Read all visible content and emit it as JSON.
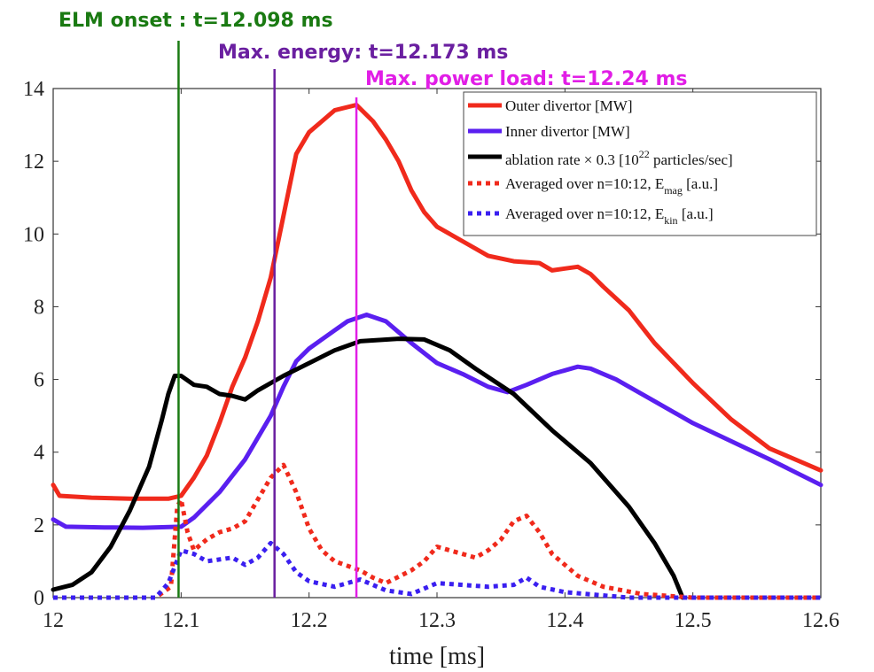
{
  "chart_data": {
    "type": "line",
    "xlabel": "time [ms]",
    "ylabel": "",
    "xlim": [
      12.0,
      12.6
    ],
    "ylim": [
      0,
      14
    ],
    "xticks": [
      "12",
      "12.1",
      "12.2",
      "12.3",
      "12.4",
      "12.5",
      "12.6"
    ],
    "xtick_values": [
      12.0,
      12.1,
      12.2,
      12.3,
      12.4,
      12.5,
      12.6
    ],
    "yticks": [
      "0",
      "2",
      "4",
      "6",
      "8",
      "10",
      "12",
      "14"
    ],
    "ytick_values": [
      0,
      2,
      4,
      6,
      8,
      10,
      12,
      14
    ],
    "legend_position": "top-right",
    "vertical_markers": [
      {
        "x": 12.098,
        "label": "ELM onset : t=12.098 ms",
        "color": "#1a7a12"
      },
      {
        "x": 12.173,
        "label": "Max. energy: t=12.173 ms",
        "color": "#6a1fa0"
      },
      {
        "x": 12.237,
        "label": "Max. power load: t=12.24 ms",
        "color": "#e11ee6"
      }
    ],
    "series": [
      {
        "name": "Outer divertor [MW]",
        "color": "#f02a1c",
        "style": "solid",
        "points": [
          [
            12.0,
            3.1
          ],
          [
            12.005,
            2.8
          ],
          [
            12.03,
            2.75
          ],
          [
            12.06,
            2.72
          ],
          [
            12.09,
            2.72
          ],
          [
            12.1,
            2.8
          ],
          [
            12.11,
            3.3
          ],
          [
            12.12,
            3.9
          ],
          [
            12.13,
            4.8
          ],
          [
            12.14,
            5.8
          ],
          [
            12.15,
            6.6
          ],
          [
            12.16,
            7.6
          ],
          [
            12.17,
            8.8
          ],
          [
            12.18,
            10.5
          ],
          [
            12.19,
            12.2
          ],
          [
            12.2,
            12.8
          ],
          [
            12.21,
            13.1
          ],
          [
            12.22,
            13.4
          ],
          [
            12.237,
            13.55
          ],
          [
            12.25,
            13.1
          ],
          [
            12.26,
            12.6
          ],
          [
            12.27,
            12.0
          ],
          [
            12.28,
            11.2
          ],
          [
            12.29,
            10.6
          ],
          [
            12.3,
            10.2
          ],
          [
            12.32,
            9.8
          ],
          [
            12.34,
            9.4
          ],
          [
            12.36,
            9.25
          ],
          [
            12.38,
            9.2
          ],
          [
            12.39,
            9.0
          ],
          [
            12.4,
            9.05
          ],
          [
            12.41,
            9.1
          ],
          [
            12.42,
            8.9
          ],
          [
            12.43,
            8.55
          ],
          [
            12.45,
            7.9
          ],
          [
            12.47,
            7.0
          ],
          [
            12.5,
            5.9
          ],
          [
            12.53,
            4.9
          ],
          [
            12.56,
            4.1
          ],
          [
            12.6,
            3.5
          ]
        ]
      },
      {
        "name": "Inner divertor [MW]",
        "color": "#5a1ff0",
        "style": "solid",
        "points": [
          [
            12.0,
            2.15
          ],
          [
            12.01,
            1.95
          ],
          [
            12.04,
            1.93
          ],
          [
            12.07,
            1.92
          ],
          [
            12.1,
            1.95
          ],
          [
            12.11,
            2.2
          ],
          [
            12.13,
            2.9
          ],
          [
            12.15,
            3.8
          ],
          [
            12.17,
            5.0
          ],
          [
            12.18,
            5.8
          ],
          [
            12.19,
            6.5
          ],
          [
            12.2,
            6.85
          ],
          [
            12.21,
            7.1
          ],
          [
            12.22,
            7.35
          ],
          [
            12.23,
            7.6
          ],
          [
            12.245,
            7.78
          ],
          [
            12.26,
            7.6
          ],
          [
            12.27,
            7.3
          ],
          [
            12.28,
            7.0
          ],
          [
            12.3,
            6.45
          ],
          [
            12.32,
            6.15
          ],
          [
            12.34,
            5.8
          ],
          [
            12.355,
            5.65
          ],
          [
            12.37,
            5.85
          ],
          [
            12.39,
            6.15
          ],
          [
            12.41,
            6.35
          ],
          [
            12.42,
            6.3
          ],
          [
            12.44,
            6.0
          ],
          [
            12.47,
            5.4
          ],
          [
            12.5,
            4.8
          ],
          [
            12.53,
            4.3
          ],
          [
            12.56,
            3.8
          ],
          [
            12.6,
            3.1
          ]
        ]
      },
      {
        "name": "ablation rate × 0.3 [10²² particles/sec]",
        "color": "#000000",
        "style": "solid",
        "points": [
          [
            12.0,
            0.22
          ],
          [
            12.015,
            0.35
          ],
          [
            12.03,
            0.7
          ],
          [
            12.045,
            1.4
          ],
          [
            12.06,
            2.4
          ],
          [
            12.075,
            3.6
          ],
          [
            12.085,
            4.9
          ],
          [
            12.09,
            5.6
          ],
          [
            12.095,
            6.1
          ],
          [
            12.1,
            6.1
          ],
          [
            12.11,
            5.85
          ],
          [
            12.12,
            5.8
          ],
          [
            12.13,
            5.6
          ],
          [
            12.14,
            5.55
          ],
          [
            12.15,
            5.45
          ],
          [
            12.16,
            5.7
          ],
          [
            12.18,
            6.1
          ],
          [
            12.2,
            6.45
          ],
          [
            12.22,
            6.8
          ],
          [
            12.24,
            7.05
          ],
          [
            12.27,
            7.12
          ],
          [
            12.29,
            7.1
          ],
          [
            12.31,
            6.8
          ],
          [
            12.33,
            6.3
          ],
          [
            12.36,
            5.6
          ],
          [
            12.39,
            4.6
          ],
          [
            12.42,
            3.7
          ],
          [
            12.45,
            2.5
          ],
          [
            12.47,
            1.5
          ],
          [
            12.485,
            0.6
          ],
          [
            12.492,
            0.0
          ]
        ]
      },
      {
        "name": "Averaged over n=10:12, E_mag [a.u.]",
        "color": "#f02a1c",
        "style": "dotted",
        "points": [
          [
            12.0,
            0.0
          ],
          [
            12.08,
            0.0
          ],
          [
            12.092,
            0.3
          ],
          [
            12.097,
            2.5
          ],
          [
            12.1,
            2.7
          ],
          [
            12.105,
            1.8
          ],
          [
            12.11,
            1.3
          ],
          [
            12.12,
            1.6
          ],
          [
            12.13,
            1.8
          ],
          [
            12.14,
            1.9
          ],
          [
            12.15,
            2.1
          ],
          [
            12.16,
            2.7
          ],
          [
            12.17,
            3.3
          ],
          [
            12.18,
            3.65
          ],
          [
            12.19,
            2.9
          ],
          [
            12.2,
            1.9
          ],
          [
            12.21,
            1.3
          ],
          [
            12.22,
            1.0
          ],
          [
            12.24,
            0.75
          ],
          [
            12.25,
            0.55
          ],
          [
            12.26,
            0.4
          ],
          [
            12.28,
            0.75
          ],
          [
            12.29,
            1.0
          ],
          [
            12.3,
            1.4
          ],
          [
            12.31,
            1.3
          ],
          [
            12.32,
            1.2
          ],
          [
            12.33,
            1.1
          ],
          [
            12.34,
            1.3
          ],
          [
            12.35,
            1.6
          ],
          [
            12.36,
            2.1
          ],
          [
            12.37,
            2.25
          ],
          [
            12.38,
            1.8
          ],
          [
            12.39,
            1.2
          ],
          [
            12.41,
            0.6
          ],
          [
            12.43,
            0.3
          ],
          [
            12.46,
            0.1
          ],
          [
            12.5,
            0.0
          ],
          [
            12.6,
            0.0
          ]
        ]
      },
      {
        "name": "Averaged over n=10:12, E_kin [a.u.]",
        "color": "#3a1ff0",
        "style": "dotted",
        "points": [
          [
            12.0,
            0.0
          ],
          [
            12.08,
            0.0
          ],
          [
            12.09,
            0.4
          ],
          [
            12.1,
            1.3
          ],
          [
            12.11,
            1.2
          ],
          [
            12.12,
            1.0
          ],
          [
            12.13,
            1.05
          ],
          [
            12.14,
            1.1
          ],
          [
            12.15,
            0.9
          ],
          [
            12.16,
            1.1
          ],
          [
            12.17,
            1.5
          ],
          [
            12.18,
            1.2
          ],
          [
            12.19,
            0.7
          ],
          [
            12.2,
            0.45
          ],
          [
            12.22,
            0.3
          ],
          [
            12.24,
            0.5
          ],
          [
            12.26,
            0.2
          ],
          [
            12.28,
            0.1
          ],
          [
            12.3,
            0.4
          ],
          [
            12.32,
            0.35
          ],
          [
            12.34,
            0.3
          ],
          [
            12.36,
            0.35
          ],
          [
            12.37,
            0.55
          ],
          [
            12.38,
            0.3
          ],
          [
            12.4,
            0.15
          ],
          [
            12.45,
            0.0
          ],
          [
            12.6,
            0.0
          ]
        ]
      }
    ],
    "legend": {
      "entries": [
        {
          "prefix": "Outer divertor [MW]",
          "sup": "",
          "mid": "",
          "sub": "",
          "suffix": ""
        },
        {
          "prefix": "Inner divertor [MW]",
          "sup": "",
          "mid": "",
          "sub": "",
          "suffix": ""
        },
        {
          "prefix": "ablation rate × 0.3 [10",
          "sup": "22",
          "mid": " particles/sec]",
          "sub": "",
          "suffix": ""
        },
        {
          "prefix": "Averaged over n=10:12, E",
          "sup": "",
          "mid": "",
          "sub": "mag",
          "suffix": " [a.u.]"
        },
        {
          "prefix": "Averaged over n=10:12, E",
          "sup": "",
          "mid": "",
          "sub": "kin",
          "suffix": " [a.u.]"
        }
      ]
    }
  }
}
